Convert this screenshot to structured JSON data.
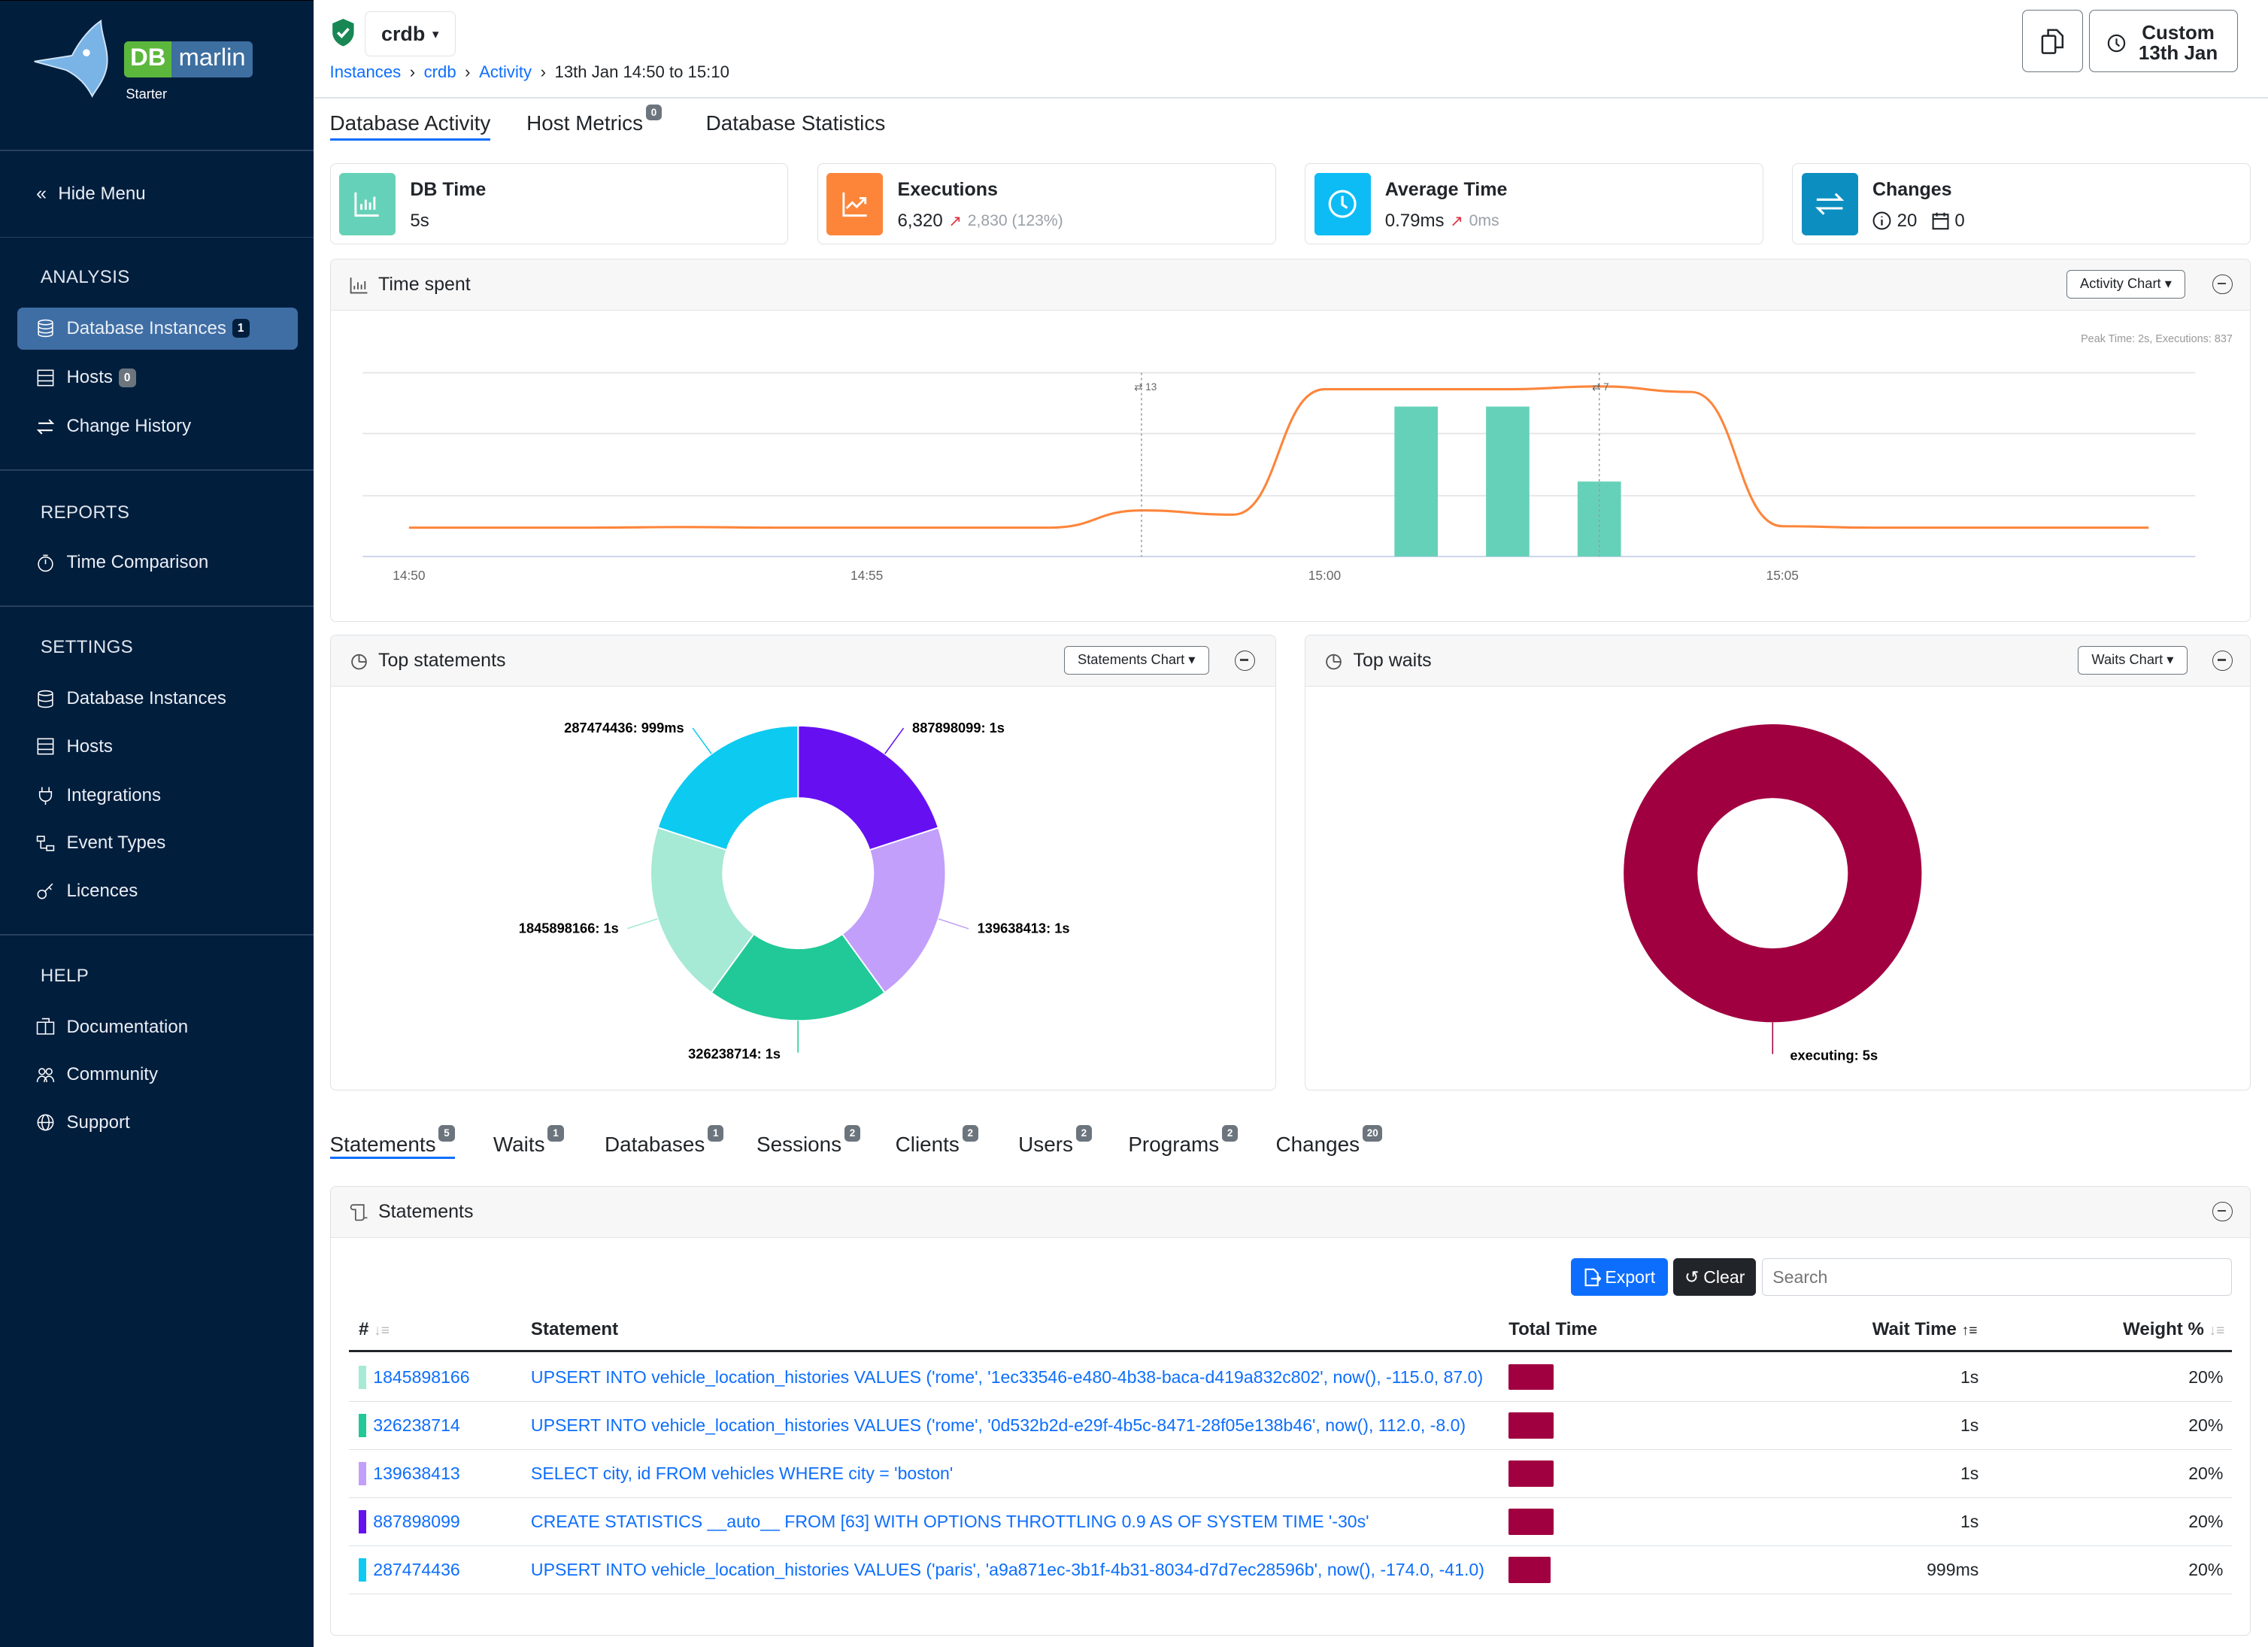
{
  "sidebar": {
    "logo": {
      "brand_a": "DB",
      "brand_b": "marlin",
      "edition": "Starter"
    },
    "hide_menu": "Hide Menu",
    "analysis": {
      "title": "ANALYSIS",
      "items": [
        {
          "label": "Database Instances",
          "badge": "1",
          "icon": "database-icon",
          "active": true
        },
        {
          "label": "Hosts",
          "badge": "0",
          "icon": "server-icon"
        },
        {
          "label": "Change History",
          "icon": "arrows-exchange-icon"
        }
      ]
    },
    "reports": {
      "title": "REPORTS",
      "items": [
        {
          "label": "Time Comparison",
          "icon": "stopwatch-icon"
        }
      ]
    },
    "settings": {
      "title": "SETTINGS",
      "items": [
        {
          "label": "Database Instances",
          "icon": "database-icon"
        },
        {
          "label": "Hosts",
          "icon": "server-icon"
        },
        {
          "label": "Integrations",
          "icon": "plug-icon"
        },
        {
          "label": "Event Types",
          "icon": "diagram-icon"
        },
        {
          "label": "Licences",
          "icon": "key-icon"
        }
      ]
    },
    "help": {
      "title": "HELP",
      "items": [
        {
          "label": "Documentation",
          "icon": "book-icon"
        },
        {
          "label": "Community",
          "icon": "people-icon"
        },
        {
          "label": "Support",
          "icon": "globe-icon"
        }
      ]
    }
  },
  "header": {
    "instance": "crdb",
    "breadcrumb": [
      "Instances",
      "crdb",
      "Activity"
    ],
    "current": "13th Jan 14:50 to 15:10",
    "time_button": {
      "line1": "Custom",
      "line2": "13th Jan"
    }
  },
  "tabs": [
    {
      "label": "Database Activity",
      "active": true
    },
    {
      "label": "Host Metrics",
      "badge": "0"
    },
    {
      "label": "Database Statistics"
    }
  ],
  "kpis": {
    "db_time": {
      "title": "DB Time",
      "value": "5s",
      "color": "#66d1b9"
    },
    "executions": {
      "title": "Executions",
      "value": "6,320",
      "delta": "2,830 (123%)",
      "color": "#fd853a"
    },
    "average_time": {
      "title": "Average Time",
      "value": "0.79ms",
      "delta": "0ms",
      "color": "#0dbcf5"
    },
    "changes": {
      "title": "Changes",
      "info_count": "20",
      "calendar_count": "0",
      "color": "#0c8fc0"
    }
  },
  "time_spent": {
    "title": "Time spent",
    "dropdown": "Activity Chart",
    "peak": "Peak Time: 2s, Executions: 837"
  },
  "top_statements": {
    "title": "Top statements",
    "dropdown": "Statements Chart"
  },
  "top_waits": {
    "title": "Top waits",
    "dropdown": "Waits Chart"
  },
  "chart_data": [
    {
      "type": "bar+line",
      "x_ticks": [
        "14:50",
        "14:55",
        "15:00",
        "15:05"
      ],
      "x": [
        "14:50",
        "14:51",
        "14:52",
        "14:53",
        "14:54",
        "14:55",
        "14:56",
        "14:57",
        "14:58",
        "14:59",
        "15:00",
        "15:01",
        "15:02",
        "15:03",
        "15:04",
        "15:05",
        "15:06",
        "15:07",
        "15:08",
        "15:09"
      ],
      "line": {
        "label": "Executions",
        "color": "#fd853a",
        "values": [
          142,
          142,
          142,
          145,
          142,
          142,
          142,
          142,
          227,
          206,
          823,
          823,
          823,
          837,
          810,
          149,
          142,
          142,
          142,
          142
        ],
        "ylim": [
          0,
          904
        ]
      },
      "bars": {
        "label": "DB Time (s)",
        "color": "#66d1b9",
        "x": [
          "15:01",
          "15:02",
          "15:03"
        ],
        "values": [
          2,
          2,
          1
        ],
        "ylim": [
          0,
          2.45
        ]
      },
      "change_markers": [
        {
          "x": "14:58",
          "count": "13"
        },
        {
          "x": "15:03",
          "count": "7"
        }
      ],
      "grid": true
    },
    {
      "type": "pie",
      "donut": true,
      "slices": [
        {
          "label": "887898099: 1s",
          "value": 1,
          "color": "#6610f2"
        },
        {
          "label": "139638413: 1s",
          "value": 1,
          "color": "#c29ffa"
        },
        {
          "label": "326238714: 1s",
          "value": 1,
          "color": "#20c997"
        },
        {
          "label": "1845898166: 1s",
          "value": 1,
          "color": "#a6e9d5"
        },
        {
          "label": "287474436: 999ms",
          "value": 0.999,
          "color": "#0dcaf0"
        }
      ]
    },
    {
      "type": "pie",
      "donut": true,
      "slices": [
        {
          "label": "executing: 5s",
          "value": 5,
          "color": "#a10040"
        }
      ]
    }
  ],
  "sub_tabs": [
    {
      "label": "Statements",
      "badge": "5",
      "active": true
    },
    {
      "label": "Waits",
      "badge": "1"
    },
    {
      "label": "Databases",
      "badge": "1"
    },
    {
      "label": "Sessions",
      "badge": "2"
    },
    {
      "label": "Clients",
      "badge": "2"
    },
    {
      "label": "Users",
      "badge": "2"
    },
    {
      "label": "Programs",
      "badge": "2"
    },
    {
      "label": "Changes",
      "badge": "20"
    }
  ],
  "statements": {
    "title": "Statements",
    "export": "Export",
    "clear": "Clear",
    "search_placeholder": "Search",
    "columns": [
      "#",
      "Statement",
      "Total Time",
      "Wait Time",
      "Weight %"
    ],
    "rows": [
      {
        "id": "1845898166",
        "color": "#a6e9d5",
        "statement": "UPSERT INTO vehicle_location_histories VALUES ('rome', '1ec33546-e480-4b38-baca-d419a832c802', now(), -115.0, 87.0)",
        "total_fraction": 1.0,
        "wait": "1s",
        "weight": "20%"
      },
      {
        "id": "326238714",
        "color": "#20c997",
        "statement": "UPSERT INTO vehicle_location_histories VALUES ('rome', '0d532b2d-e29f-4b5c-8471-28f05e138b46', now(), 112.0, -8.0)",
        "total_fraction": 1.0,
        "wait": "1s",
        "weight": "20%"
      },
      {
        "id": "139638413",
        "color": "#c29ffa",
        "statement": "SELECT city, id FROM vehicles WHERE city = 'boston'",
        "total_fraction": 1.0,
        "wait": "1s",
        "weight": "20%"
      },
      {
        "id": "887898099",
        "color": "#6610f2",
        "statement": "CREATE STATISTICS __auto__ FROM [63] WITH OPTIONS THROTTLING 0.9 AS OF SYSTEM TIME '-30s'",
        "total_fraction": 1.0,
        "wait": "1s",
        "weight": "20%"
      },
      {
        "id": "287474436",
        "color": "#0dcaf0",
        "statement": "UPSERT INTO vehicle_location_histories VALUES ('paris', 'a9a871ec-3b1f-4b31-8034-d7d7ec28596b', now(), -174.0, -41.0)",
        "total_fraction": 0.999,
        "wait": "999ms",
        "weight": "20%"
      }
    ]
  }
}
